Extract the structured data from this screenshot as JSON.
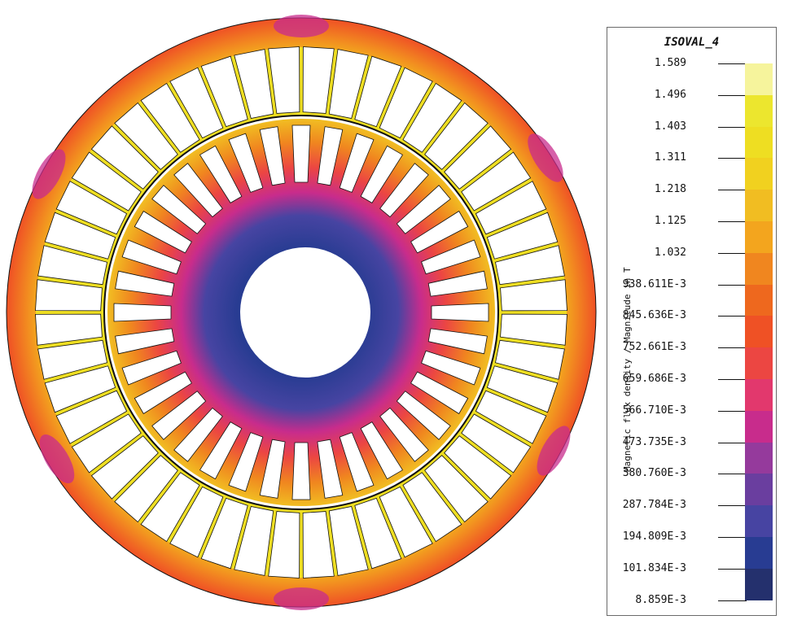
{
  "legend": {
    "title": "ISOVAL_4",
    "quantity_label": "Magnetic flux density / Magnitude in T",
    "levels": [
      {
        "label": "1.589",
        "color": "#f6f49c"
      },
      {
        "label": "1.496",
        "color": "#ece62e"
      },
      {
        "label": "1.403",
        "color": "#eede22"
      },
      {
        "label": "1.311",
        "color": "#f1d11f"
      },
      {
        "label": "1.218",
        "color": "#f1bd22"
      },
      {
        "label": "1.125",
        "color": "#f3a51e"
      },
      {
        "label": "1.032",
        "color": "#f0861f"
      },
      {
        "label": "938.611E-3",
        "color": "#ee681e"
      },
      {
        "label": "845.636E-3",
        "color": "#ef5125"
      },
      {
        "label": "752.661E-3",
        "color": "#ec4642"
      },
      {
        "label": "659.686E-3",
        "color": "#e2386d"
      },
      {
        "label": "566.710E-3",
        "color": "#c82c8c"
      },
      {
        "label": "473.735E-3",
        "color": "#953a9c"
      },
      {
        "label": "380.760E-3",
        "color": "#6a3e9f"
      },
      {
        "label": "287.784E-3",
        "color": "#4744a2"
      },
      {
        "label": "194.809E-3",
        "color": "#283c92"
      },
      {
        "label": "101.834E-3",
        "color": "#24306d"
      },
      {
        "label": "8.859E-3",
        "color": "#1f2a55"
      }
    ]
  },
  "model": {
    "colors": {
      "stator_yoke": "#f1bd22",
      "stator_yoke_outer": "#ef5125",
      "stator_tooth": "#eede22",
      "rotor_core": "#ec4642",
      "rotor_inner": "#283c92",
      "rotor_mid": "#c82c8c",
      "low_flux": "#1f2a55",
      "slot": "#ffffff",
      "outline": "#111111"
    }
  }
}
